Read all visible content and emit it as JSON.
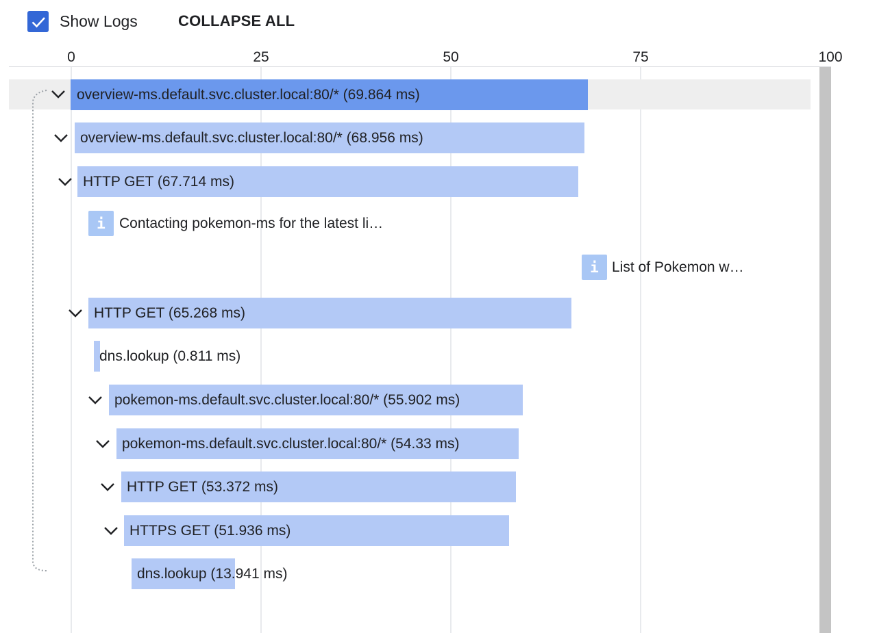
{
  "toolbar": {
    "show_logs_checked": true,
    "show_logs_label": "Show Logs",
    "collapse_all_label": "COLLAPSE ALL",
    "checkbox_color": "#3367d6"
  },
  "timeline": {
    "axis_ticks": [
      "0",
      "25",
      "50",
      "75",
      "100"
    ],
    "bar_color": "#b3c9f6",
    "selected_bar_color": "#6b98ed"
  },
  "spans": [
    {
      "label": "overview-ms.default.svc.cluster.local:80/* (69.864 ms)",
      "depth": 0,
      "expanded": true,
      "selected": true
    },
    {
      "label": "overview-ms.default.svc.cluster.local:80/* (68.956 ms)",
      "depth": 1,
      "expanded": true,
      "selected": false
    },
    {
      "label": "HTTP GET (67.714 ms)",
      "depth": 2,
      "expanded": true,
      "selected": false
    },
    {
      "label": "HTTP GET (65.268 ms)",
      "depth": 3,
      "expanded": true,
      "selected": false
    },
    {
      "label": "dns.lookup (0.811 ms)",
      "depth": 4,
      "expanded": false,
      "selected": false
    },
    {
      "label": "pokemon-ms.default.svc.cluster.local:80/* (55.902 ms)",
      "depth": 4,
      "expanded": true,
      "selected": false
    },
    {
      "label": "pokemon-ms.default.svc.cluster.local:80/* (54.33 ms)",
      "depth": 5,
      "expanded": true,
      "selected": false
    },
    {
      "label": "HTTP GET (53.372 ms)",
      "depth": 6,
      "expanded": true,
      "selected": false
    },
    {
      "label": "HTTPS GET (51.936 ms)",
      "depth": 7,
      "expanded": true,
      "selected": false
    },
    {
      "label": "dns.lookup (13.941 ms)",
      "depth": 8,
      "expanded": false,
      "selected": false
    }
  ],
  "logs": [
    {
      "icon": "i",
      "text": "Contacting pokemon-ms for the latest li…"
    },
    {
      "icon": "i",
      "text": "List of Pokemon w…"
    }
  ]
}
